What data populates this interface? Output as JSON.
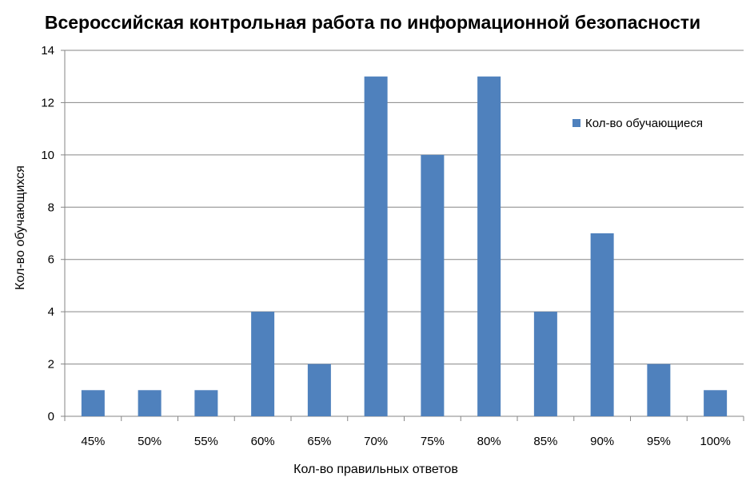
{
  "chart_data": {
    "type": "bar",
    "title": "Всероссийская контрольная работа по информационной безопасности",
    "xlabel": "Кол-во правильных ответов",
    "ylabel": "Кол-во обучающихся",
    "categories": [
      "45%",
      "50%",
      "55%",
      "60%",
      "65%",
      "70%",
      "75%",
      "80%",
      "85%",
      "90%",
      "95%",
      "100%"
    ],
    "series": [
      {
        "name": "Кол-во обучающиеся",
        "values": [
          1,
          1,
          1,
          4,
          2,
          13,
          10,
          13,
          4,
          7,
          2,
          1
        ],
        "color": "#4F81BD"
      }
    ],
    "ylim": [
      0,
      14
    ],
    "yticks": [
      0,
      2,
      4,
      6,
      8,
      10,
      12,
      14
    ],
    "grid": true,
    "legend_position": "top-right"
  }
}
